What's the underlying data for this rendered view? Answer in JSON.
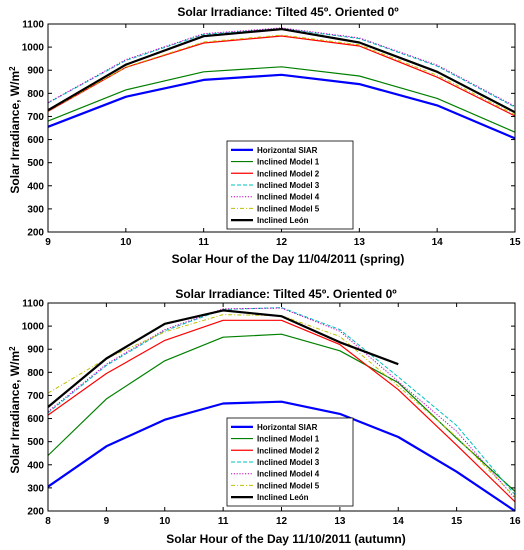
{
  "chart_data": [
    {
      "type": "line",
      "title": "Solar Irradiance: Tilted 45º. Oriented 0º",
      "xlabel": "Solar Hour of the Day 11/04/2011 (spring)",
      "ylabel_main": "Solar Irradiance, W/m",
      "ylabel_sup": "2",
      "xlim": [
        9,
        15
      ],
      "ylim": [
        200,
        1100
      ],
      "xticks": [
        "9",
        "10",
        "11",
        "12",
        "13",
        "14",
        "15"
      ],
      "yticks": [
        "200",
        "300",
        "400",
        "500",
        "600",
        "700",
        "800",
        "900",
        "1000",
        "1100"
      ],
      "grid": false,
      "legend_position": "lower-center",
      "x": [
        9,
        10,
        11,
        12,
        13,
        14,
        15
      ],
      "series": [
        {
          "name": "Horizontal SIAR",
          "color": "#0000ff",
          "dash": "solid",
          "width": 2.2,
          "values": [
            655,
            785,
            858,
            880,
            840,
            748,
            605
          ]
        },
        {
          "name": "Inclined Model 1",
          "color": "#008000",
          "dash": "solid",
          "width": 1.2,
          "values": [
            680,
            815,
            893,
            915,
            875,
            778,
            632
          ]
        },
        {
          "name": "Inclined Model 2",
          "color": "#ff0000",
          "dash": "solid",
          "width": 1.2,
          "values": [
            722,
            912,
            1018,
            1048,
            1005,
            870,
            702
          ]
        },
        {
          "name": "Inclined Model 3",
          "color": "#00bfbf",
          "dash": "dashed",
          "width": 1.0,
          "values": [
            758,
            942,
            1055,
            1080,
            1037,
            918,
            740
          ]
        },
        {
          "name": "Inclined Model 4",
          "color": "#bf00bf",
          "dash": "dotted",
          "width": 1.0,
          "values": [
            760,
            946,
            1058,
            1083,
            1040,
            922,
            744
          ]
        },
        {
          "name": "Inclined Model 5",
          "color": "#bfbf00",
          "dash": "dashdot",
          "width": 1.0,
          "values": [
            724,
            914,
            1022,
            1052,
            1010,
            878,
            708
          ]
        },
        {
          "name": "Inclined León",
          "color": "#000000",
          "dash": "solid",
          "width": 2.2,
          "values": [
            727,
            924,
            1047,
            1078,
            1020,
            893,
            718
          ]
        }
      ]
    },
    {
      "type": "line",
      "title": "Solar Irradiance: Tilted 45º. Oriented 0º",
      "xlabel": "Solar Hour of the Day 11/10/2011 (autumn)",
      "ylabel_main": "Solar Irradiance, W/m",
      "ylabel_sup": "2",
      "xlim": [
        8,
        16
      ],
      "ylim": [
        200,
        1100
      ],
      "xticks": [
        "8",
        "9",
        "10",
        "11",
        "12",
        "13",
        "14",
        "15",
        "16"
      ],
      "yticks": [
        "200",
        "300",
        "400",
        "500",
        "600",
        "700",
        "800",
        "900",
        "1000",
        "1100"
      ],
      "grid": false,
      "legend_position": "lower-center",
      "x": [
        8,
        9,
        10,
        11,
        12,
        13,
        14,
        15,
        16
      ],
      "series": [
        {
          "name": "Horizontal SIAR",
          "color": "#0000ff",
          "dash": "solid",
          "width": 2.2,
          "values": [
            305,
            480,
            595,
            665,
            673,
            620,
            520,
            370,
            200
          ]
        },
        {
          "name": "Inclined Model 1",
          "color": "#008000",
          "dash": "solid",
          "width": 1.2,
          "values": [
            440,
            685,
            850,
            952,
            965,
            893,
            755,
            515,
            285
          ]
        },
        {
          "name": "Inclined Model 2",
          "color": "#ff0000",
          "dash": "solid",
          "width": 1.2,
          "values": [
            615,
            795,
            938,
            1025,
            1025,
            920,
            725,
            485,
            240
          ]
        },
        {
          "name": "Inclined Model 3",
          "color": "#00bfbf",
          "dash": "dashed",
          "width": 1.0,
          "values": [
            625,
            830,
            980,
            1072,
            1080,
            985,
            780,
            570,
            270
          ]
        },
        {
          "name": "Inclined Model 4",
          "color": "#bf00bf",
          "dash": "dotted",
          "width": 1.0,
          "values": [
            630,
            835,
            985,
            1075,
            1078,
            978,
            760,
            545,
            255
          ]
        },
        {
          "name": "Inclined Model 5",
          "color": "#bfbf00",
          "dash": "dashdot",
          "width": 1.0,
          "values": [
            710,
            860,
            975,
            1050,
            1045,
            955,
            740,
            520,
            260
          ]
        },
        {
          "name": "Inclined León",
          "color": "#000000",
          "dash": "solid",
          "width": 2.2,
          "values": [
            650,
            860,
            1010,
            1068,
            1043,
            930,
            835,
            null,
            null
          ]
        }
      ]
    }
  ]
}
